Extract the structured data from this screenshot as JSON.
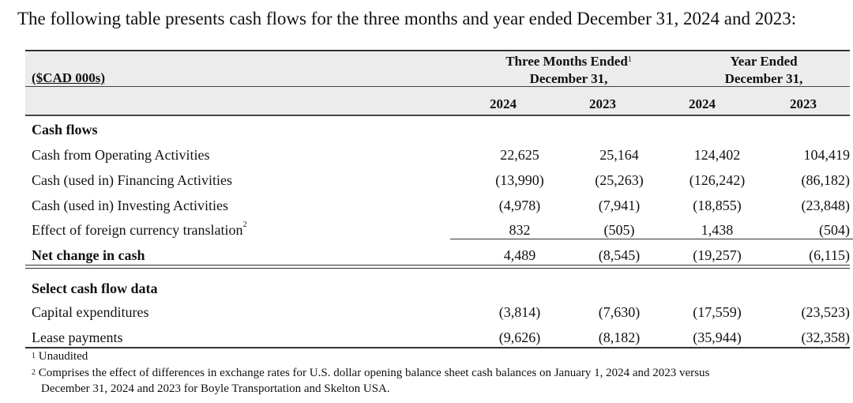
{
  "intro": "The following table presents cash flows for the three months and year ended December 31, 2024 and 2023:",
  "header": {
    "unit": "($CAD 000s)",
    "group_three_months": {
      "line1": "Three Months Ended",
      "sup": "1",
      "line2": "December 31,"
    },
    "group_year": {
      "line1": "Year Ended",
      "line2": "December 31,"
    },
    "years": [
      "2024",
      "2023",
      "2024",
      "2023"
    ]
  },
  "sections": {
    "cash_flows": "Cash flows",
    "select": "Select cash flow data"
  },
  "rows": {
    "operating": {
      "label": "Cash from Operating Activities",
      "values": [
        "22,625",
        "25,164",
        "124,402",
        "104,419"
      ]
    },
    "financing": {
      "label": "Cash (used in) Financing Activities",
      "values": [
        "(13,990)",
        "(25,263)",
        "(126,242)",
        "(86,182)"
      ]
    },
    "investing": {
      "label": "Cash (used in) Investing Activities",
      "values": [
        "(4,978)",
        "(7,941)",
        "(18,855)",
        "(23,848)"
      ]
    },
    "fx": {
      "label": "Effect of foreign currency translation",
      "sup": "2",
      "values": [
        "832",
        "(505)",
        "1,438",
        "(504)"
      ]
    },
    "net": {
      "label": "Net change in cash",
      "values": [
        "4,489",
        "(8,545)",
        "(19,257)",
        "(6,115)"
      ]
    },
    "capex": {
      "label": "Capital expenditures",
      "values": [
        "(3,814)",
        "(7,630)",
        "(17,559)",
        "(23,523)"
      ]
    },
    "lease": {
      "label": "Lease payments",
      "values": [
        "(9,626)",
        "(8,182)",
        "(35,944)",
        "(32,358)"
      ]
    }
  },
  "footnotes": {
    "n1": {
      "mark": "1",
      "text": "Unaudited"
    },
    "n2": {
      "mark": "2",
      "line1": "Comprises the effect of differences in exchange rates for U.S. dollar opening balance sheet cash balances on January 1, 2024 and 2023 versus",
      "line2": "December 31, 2024 and 2023 for Boyle Transportation and Skelton USA."
    }
  }
}
